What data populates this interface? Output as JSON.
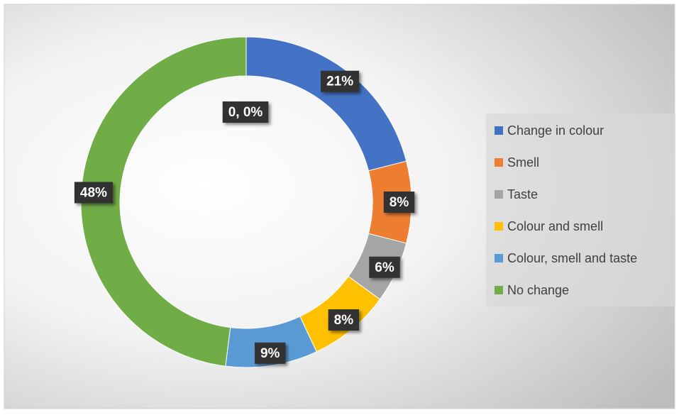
{
  "chart_data": {
    "type": "donut",
    "categories": [
      "Change in colour",
      "Smell",
      "Taste",
      "Colour and smell",
      "Colour, smell and taste",
      "No change"
    ],
    "values": [
      21,
      8,
      6,
      8,
      9,
      48
    ],
    "value_labels": [
      "21%",
      "8%",
      "6%",
      "8%",
      "9%",
      "48%"
    ],
    "colors": [
      "#4472c4",
      "#ed7d31",
      "#a5a5a5",
      "#ffc000",
      "#5b9bd5",
      "#70ad47"
    ],
    "annotations": [
      "0, 0%"
    ],
    "legend": "right"
  }
}
